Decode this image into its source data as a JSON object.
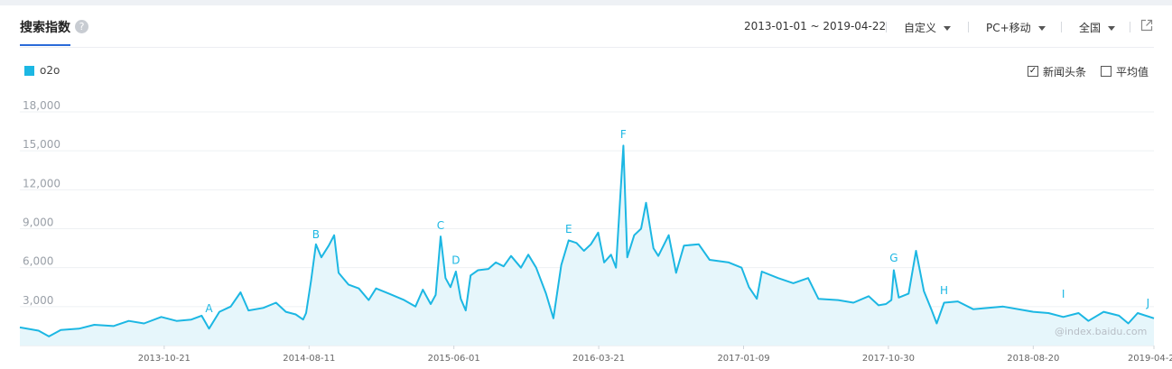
{
  "header": {
    "title": "搜索指数",
    "help_icon": "question-circle-icon",
    "date_range": "2013-01-01 ~ 2019-04-22",
    "mode": "自定义",
    "device": "PC+移动",
    "region": "全国",
    "export_icon": "external-link-icon"
  },
  "legend": {
    "series_name": "o2o",
    "color": "#1cb7e3"
  },
  "options": [
    {
      "label": "新闻头条",
      "checked": true
    },
    {
      "label": "平均值",
      "checked": false
    }
  ],
  "watermark": "@index.baidu.com",
  "chart_data": {
    "type": "area",
    "ylim": [
      0,
      18000
    ],
    "y_ticks": [
      "18,000",
      "15,000",
      "12,000",
      "9,000",
      "6,000",
      "3,000"
    ],
    "y_tick_values": [
      18000,
      15000,
      12000,
      9000,
      6000,
      3000
    ],
    "x_tick_labels": [
      "2013-10-21",
      "2014-08-11",
      "2015-06-01",
      "2016-03-21",
      "2017-01-09",
      "2017-10-30",
      "2018-08-20",
      "2019-04-22"
    ],
    "x_tick_dates": [
      "2013-10-21",
      "2014-08-11",
      "2015-06-01",
      "2016-03-21",
      "2017-01-09",
      "2017-10-30",
      "2018-08-20",
      "2019-04-22"
    ],
    "x_range": [
      "2013-01-01",
      "2019-04-22"
    ],
    "grid": true,
    "series": [
      {
        "name": "o2o",
        "color": "#1cb7e3",
        "points": [
          [
            "2013-01-01",
            1400
          ],
          [
            "2013-02-08",
            1150
          ],
          [
            "2013-03-01",
            700
          ],
          [
            "2013-03-25",
            1200
          ],
          [
            "2013-05-01",
            1300
          ],
          [
            "2013-06-01",
            1600
          ],
          [
            "2013-07-10",
            1500
          ],
          [
            "2013-08-10",
            1900
          ],
          [
            "2013-09-10",
            1700
          ],
          [
            "2013-10-15",
            2200
          ],
          [
            "2013-11-15",
            1900
          ],
          [
            "2013-12-15",
            2000
          ],
          [
            "2014-01-05",
            2300
          ],
          [
            "2014-01-20",
            1300
          ],
          [
            "2014-02-10",
            2600
          ],
          [
            "2014-03-05",
            3000
          ],
          [
            "2014-03-25",
            4100
          ],
          [
            "2014-04-10",
            2700
          ],
          [
            "2014-05-10",
            2900
          ],
          [
            "2014-06-05",
            3300
          ],
          [
            "2014-06-25",
            2600
          ],
          [
            "2014-07-15",
            2400
          ],
          [
            "2014-07-30",
            2000
          ],
          [
            "2014-08-05",
            2500
          ],
          [
            "2014-08-15",
            5000
          ],
          [
            "2014-08-25",
            7800
          ],
          [
            "2014-09-05",
            6800
          ],
          [
            "2014-09-20",
            7700
          ],
          [
            "2014-10-01",
            8500
          ],
          [
            "2014-10-10",
            5600
          ],
          [
            "2014-10-30",
            4700
          ],
          [
            "2014-11-20",
            4400
          ],
          [
            "2014-12-10",
            3500
          ],
          [
            "2014-12-25",
            4400
          ],
          [
            "2015-01-20",
            4000
          ],
          [
            "2015-02-20",
            3500
          ],
          [
            "2015-03-15",
            3000
          ],
          [
            "2015-03-30",
            4300
          ],
          [
            "2015-04-15",
            3200
          ],
          [
            "2015-04-25",
            3900
          ],
          [
            "2015-05-05",
            8400
          ],
          [
            "2015-05-15",
            5200
          ],
          [
            "2015-05-25",
            4500
          ],
          [
            "2015-06-05",
            5700
          ],
          [
            "2015-06-15",
            3600
          ],
          [
            "2015-06-25",
            2700
          ],
          [
            "2015-07-05",
            5400
          ],
          [
            "2015-07-20",
            5800
          ],
          [
            "2015-08-10",
            5900
          ],
          [
            "2015-08-25",
            6400
          ],
          [
            "2015-09-10",
            6100
          ],
          [
            "2015-09-25",
            6900
          ],
          [
            "2015-10-15",
            6000
          ],
          [
            "2015-10-30",
            7000
          ],
          [
            "2015-11-15",
            6000
          ],
          [
            "2015-12-05",
            4000
          ],
          [
            "2015-12-20",
            2100
          ],
          [
            "2016-01-05",
            6200
          ],
          [
            "2016-01-20",
            8100
          ],
          [
            "2016-02-05",
            7900
          ],
          [
            "2016-02-20",
            7300
          ],
          [
            "2016-03-05",
            7800
          ],
          [
            "2016-03-20",
            8700
          ],
          [
            "2016-04-01",
            6400
          ],
          [
            "2016-04-15",
            7000
          ],
          [
            "2016-04-25",
            6000
          ],
          [
            "2016-05-10",
            15400
          ],
          [
            "2016-05-18",
            6800
          ],
          [
            "2016-06-01",
            8500
          ],
          [
            "2016-06-15",
            9000
          ],
          [
            "2016-06-25",
            11000
          ],
          [
            "2016-07-10",
            7500
          ],
          [
            "2016-07-20",
            6900
          ],
          [
            "2016-08-10",
            8500
          ],
          [
            "2016-08-25",
            5600
          ],
          [
            "2016-09-10",
            7700
          ],
          [
            "2016-10-10",
            7800
          ],
          [
            "2016-11-01",
            6600
          ],
          [
            "2016-12-10",
            6400
          ],
          [
            "2017-01-05",
            6000
          ],
          [
            "2017-01-20",
            4500
          ],
          [
            "2017-02-05",
            3600
          ],
          [
            "2017-02-15",
            5700
          ],
          [
            "2017-03-20",
            5200
          ],
          [
            "2017-04-20",
            4800
          ],
          [
            "2017-05-20",
            5200
          ],
          [
            "2017-06-10",
            3600
          ],
          [
            "2017-07-20",
            3500
          ],
          [
            "2017-08-20",
            3300
          ],
          [
            "2017-09-20",
            3800
          ],
          [
            "2017-10-10",
            3100
          ],
          [
            "2017-10-25",
            3200
          ],
          [
            "2017-11-05",
            3500
          ],
          [
            "2017-11-10",
            5800
          ],
          [
            "2017-11-20",
            3700
          ],
          [
            "2017-12-10",
            4000
          ],
          [
            "2017-12-25",
            7300
          ],
          [
            "2018-01-10",
            4200
          ],
          [
            "2018-01-25",
            2800
          ],
          [
            "2018-02-05",
            1700
          ],
          [
            "2018-02-20",
            3300
          ],
          [
            "2018-03-20",
            3400
          ],
          [
            "2018-04-20",
            2800
          ],
          [
            "2018-06-20",
            3000
          ],
          [
            "2018-08-20",
            2600
          ],
          [
            "2018-09-20",
            2500
          ],
          [
            "2018-10-20",
            2200
          ],
          [
            "2018-11-20",
            2500
          ],
          [
            "2018-12-10",
            1900
          ],
          [
            "2019-01-10",
            2600
          ],
          [
            "2019-02-10",
            2300
          ],
          [
            "2019-03-01",
            1700
          ],
          [
            "2019-03-20",
            2500
          ],
          [
            "2019-04-22",
            2100
          ]
        ]
      }
    ],
    "annotations": [
      {
        "label": "A",
        "date": "2014-01-20",
        "value": 2300
      },
      {
        "label": "B",
        "date": "2014-08-25",
        "value": 8000
      },
      {
        "label": "C",
        "date": "2015-05-05",
        "value": 8700
      },
      {
        "label": "D",
        "date": "2015-06-05",
        "value": 6000
      },
      {
        "label": "E",
        "date": "2016-01-20",
        "value": 8400
      },
      {
        "label": "F",
        "date": "2016-05-10",
        "value": 15700
      },
      {
        "label": "G",
        "date": "2017-11-10",
        "value": 6200
      },
      {
        "label": "H",
        "date": "2018-02-20",
        "value": 3700
      },
      {
        "label": "I",
        "date": "2018-10-20",
        "value": 3400
      },
      {
        "label": "J",
        "date": "2019-04-10",
        "value": 2700
      }
    ]
  }
}
